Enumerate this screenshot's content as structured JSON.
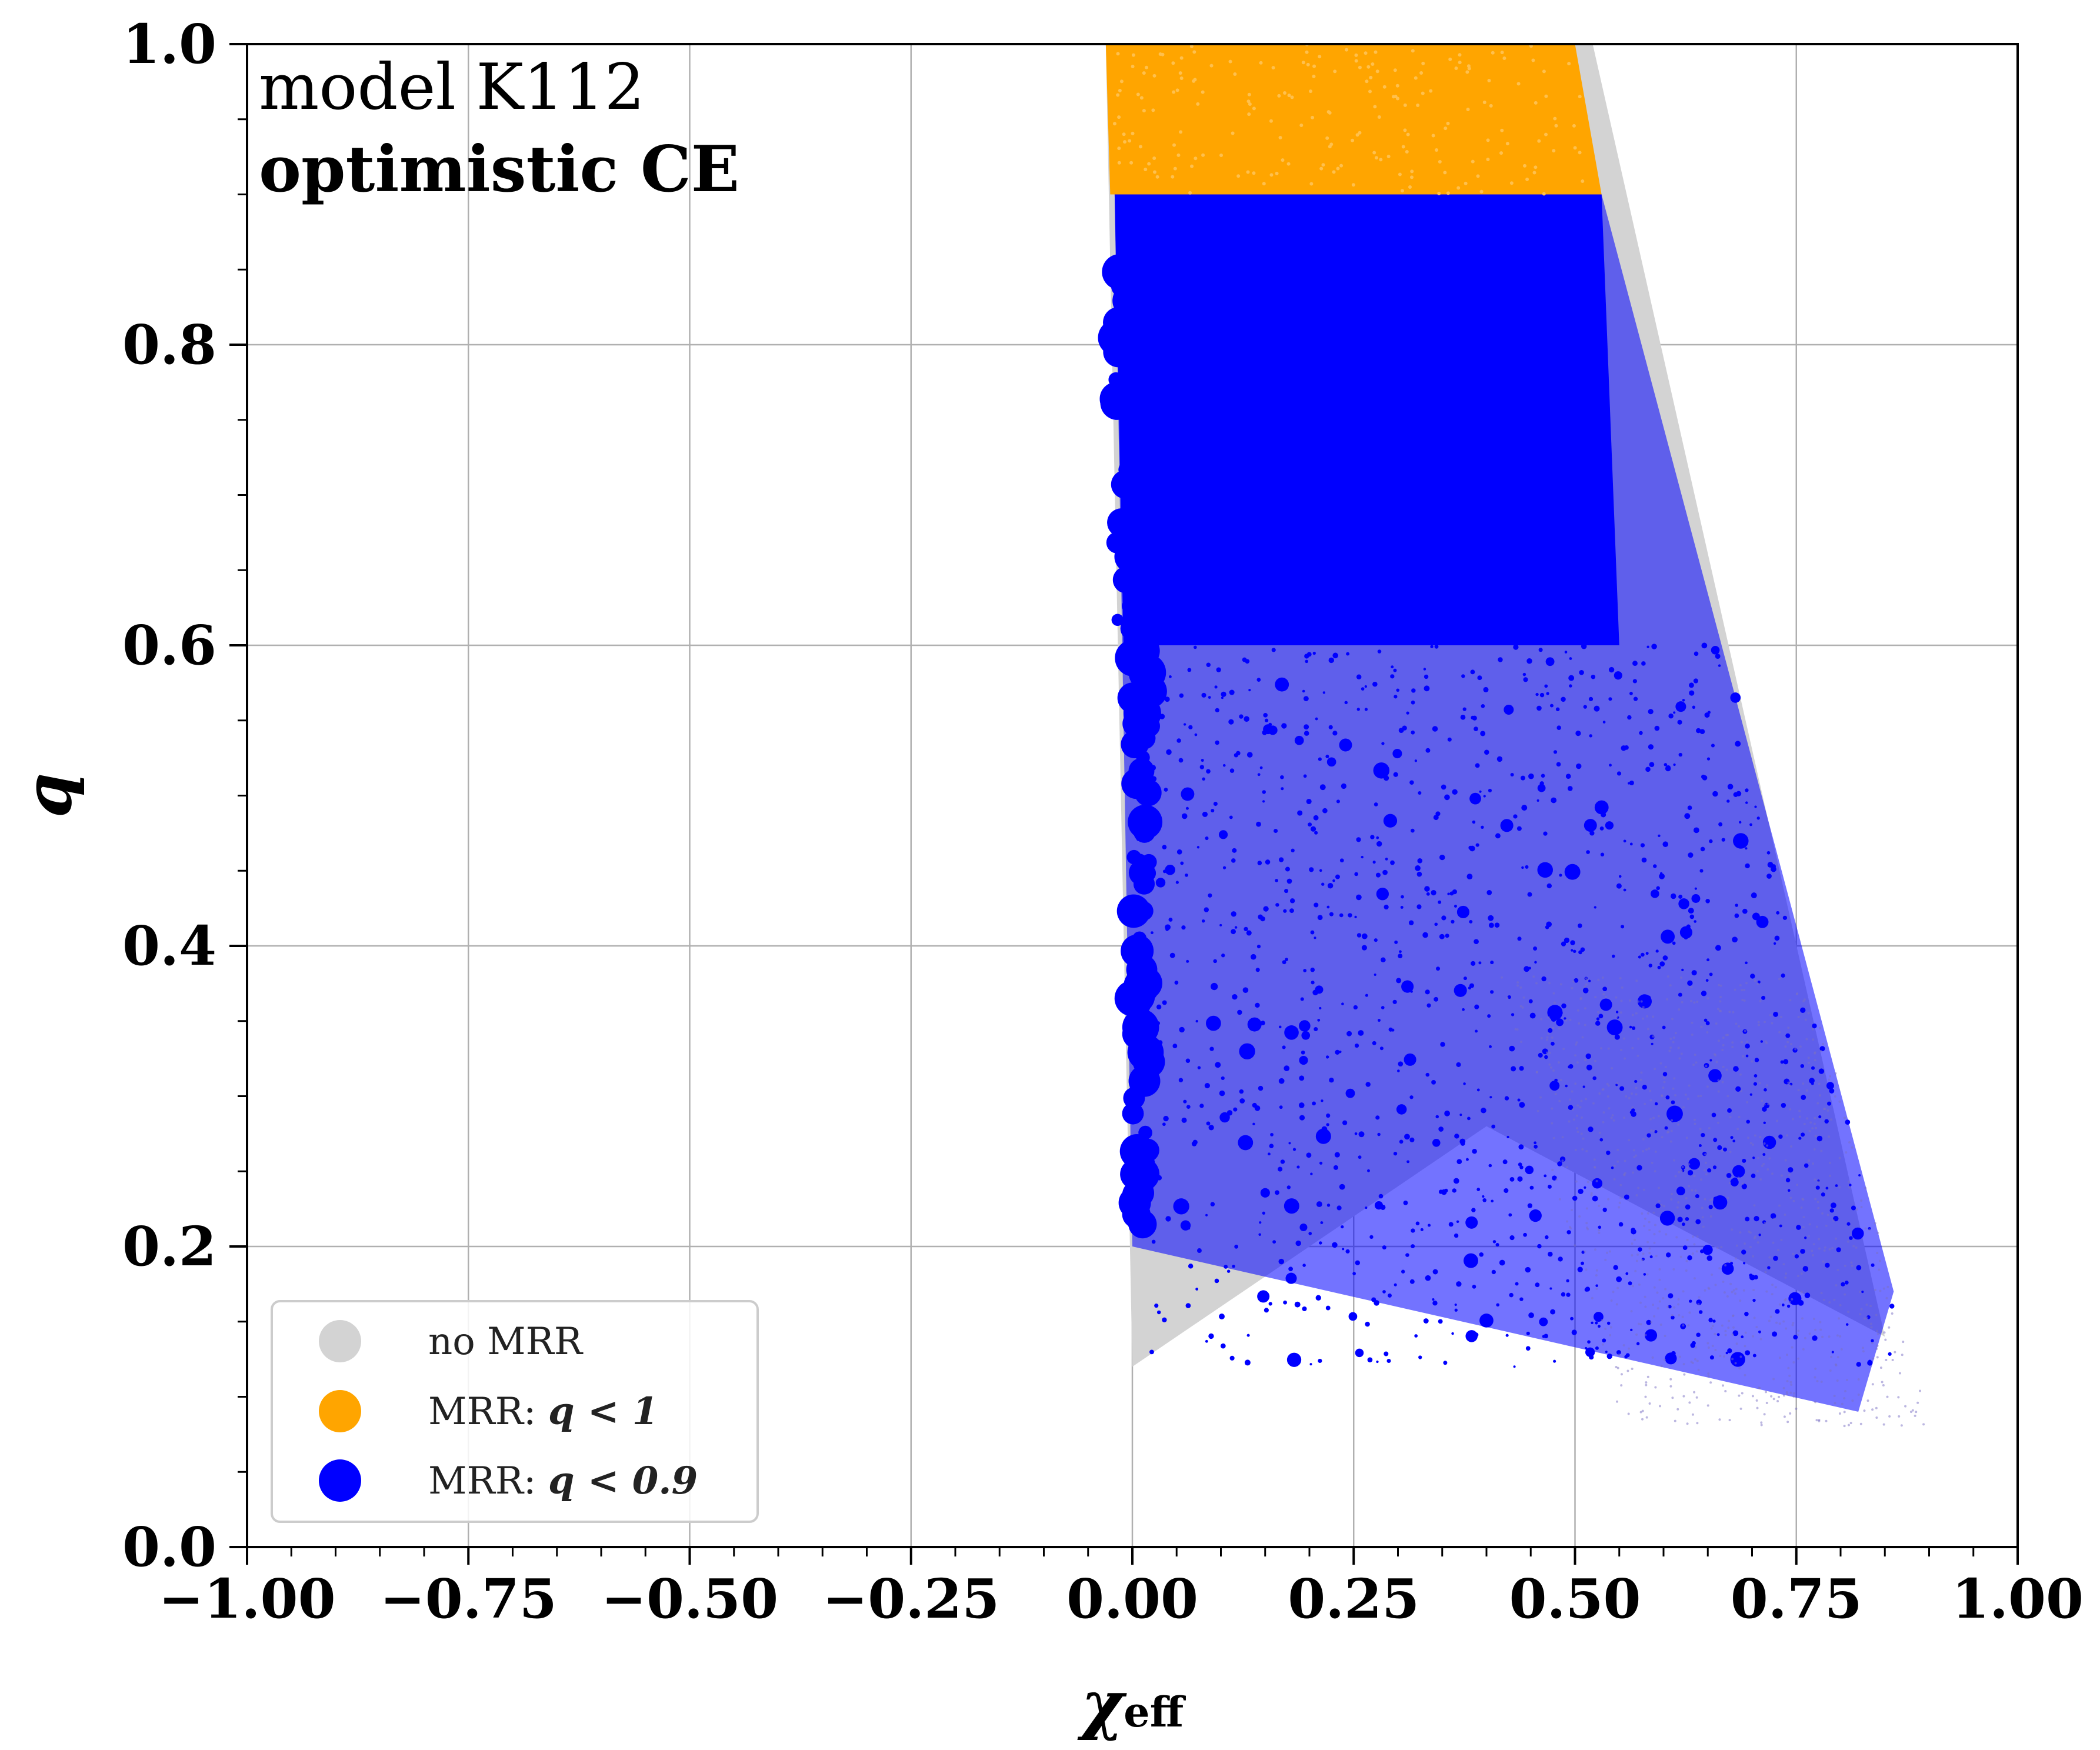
{
  "chart_data": {
    "type": "scatter",
    "title": "",
    "xlabel": "χ",
    "xlabel_sub": "eff",
    "ylabel": "q",
    "xlim": [
      -1.0,
      1.0
    ],
    "ylim": [
      0.0,
      1.0
    ],
    "grid": true,
    "legend_position": "bottom-left",
    "x_ticks": [
      -1.0,
      -0.75,
      -0.5,
      -0.25,
      0.0,
      0.25,
      0.5,
      0.75,
      1.0
    ],
    "x_tick_labels": [
      "−1.00",
      "−0.75",
      "−0.50",
      "−0.25",
      "0.00",
      "0.25",
      "0.50",
      "0.75",
      "1.00"
    ],
    "y_ticks": [
      0.0,
      0.2,
      0.4,
      0.6,
      0.8,
      1.0
    ],
    "y_tick_labels": [
      "0.0",
      "0.2",
      "0.4",
      "0.6",
      "0.8",
      "1.0"
    ],
    "annotations": {
      "model": "model K112",
      "variant": "optimistic CE"
    },
    "series": [
      {
        "name": "no MRR",
        "label_prefix": "no MRR",
        "label_condition": "",
        "color": "#d3d3d3",
        "region": [
          [
            -0.03,
            1.0
          ],
          [
            0.0,
            0.12
          ],
          [
            0.4,
            0.28
          ],
          [
            0.85,
            0.14
          ],
          [
            0.52,
            1.0
          ]
        ]
      },
      {
        "name": "MRR: q < 1",
        "label_prefix": "MRR:",
        "label_condition": "q < 1",
        "color": "#ffa500",
        "region": [
          [
            -0.03,
            1.0
          ],
          [
            -0.025,
            0.9
          ],
          [
            0.53,
            0.9
          ],
          [
            0.5,
            1.0
          ]
        ]
      },
      {
        "name": "MRR: q < 0.9",
        "label_prefix": "MRR:",
        "label_condition": "q < 0.9",
        "color": "#0000ff",
        "core_region": [
          [
            -0.02,
            0.9
          ],
          [
            0.53,
            0.9
          ],
          [
            0.55,
            0.6
          ],
          [
            -0.01,
            0.6
          ]
        ],
        "outer_envelope": [
          [
            -0.02,
            0.9
          ],
          [
            0.53,
            0.9
          ],
          [
            0.86,
            0.17
          ],
          [
            0.82,
            0.09
          ],
          [
            0.0,
            0.2
          ]
        ]
      }
    ]
  }
}
